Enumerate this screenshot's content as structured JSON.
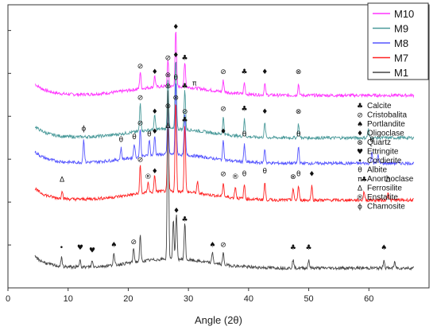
{
  "chart_data": {
    "type": "line",
    "xlabel": "Angle (2θ)",
    "ylabel": "",
    "xlim": [
      0,
      70
    ],
    "xticks": [
      0,
      10,
      20,
      30,
      40,
      50,
      60
    ],
    "grid": false,
    "legend_position": "top-right",
    "series": [
      {
        "name": "M10",
        "color": "#ff33ff",
        "baseline": 68,
        "peaks": [
          [
            22.0,
            6
          ],
          [
            24.4,
            4
          ],
          [
            26.6,
            9
          ],
          [
            27.9,
            20
          ],
          [
            29.4,
            9
          ],
          [
            35.8,
            4
          ],
          [
            39.3,
            4
          ],
          [
            42.7,
            4
          ],
          [
            48.3,
            4
          ]
        ]
      },
      {
        "name": "M9",
        "color": "#4a9a9a",
        "baseline": 53,
        "peaks": [
          [
            22.0,
            10
          ],
          [
            24.4,
            5
          ],
          [
            26.6,
            18
          ],
          [
            27.9,
            25
          ],
          [
            29.4,
            14
          ],
          [
            35.8,
            6
          ],
          [
            39.3,
            6
          ],
          [
            42.7,
            5
          ],
          [
            48.3,
            5
          ],
          [
            59.9,
            3
          ]
        ]
      },
      {
        "name": "M8",
        "color": "#5555ff",
        "baseline": 44,
        "peaks": [
          [
            12.6,
            8
          ],
          [
            18.8,
            4
          ],
          [
            21.0,
            5
          ],
          [
            22.0,
            10
          ],
          [
            23.5,
            6
          ],
          [
            24.4,
            7
          ],
          [
            26.6,
            16
          ],
          [
            27.9,
            26
          ],
          [
            29.4,
            14
          ],
          [
            35.8,
            7
          ],
          [
            39.3,
            6
          ],
          [
            42.7,
            5
          ],
          [
            48.3,
            6
          ],
          [
            60.5,
            4
          ],
          [
            61.5,
            3
          ]
        ]
      },
      {
        "name": "M7",
        "color": "#ff2222",
        "baseline": 31,
        "peaks": [
          [
            9.0,
            3
          ],
          [
            22.0,
            10
          ],
          [
            23.3,
            4
          ],
          [
            24.4,
            6
          ],
          [
            26.6,
            22
          ],
          [
            27.9,
            32
          ],
          [
            29.4,
            24
          ],
          [
            31.5,
            4
          ],
          [
            35.8,
            5
          ],
          [
            37.8,
            4
          ],
          [
            39.3,
            5
          ],
          [
            42.7,
            6
          ],
          [
            47.4,
            4
          ],
          [
            48.3,
            5
          ],
          [
            50.5,
            5
          ],
          [
            59.2,
            3
          ],
          [
            63.2,
            3
          ]
        ]
      },
      {
        "name": "M1",
        "color": "#444444",
        "baseline": 7,
        "peaks": [
          [
            8.9,
            3
          ],
          [
            12.0,
            3
          ],
          [
            14.0,
            2
          ],
          [
            17.6,
            4
          ],
          [
            20.9,
            5
          ],
          [
            22.0,
            9
          ],
          [
            26.6,
            60
          ],
          [
            27.5,
            14
          ],
          [
            28.0,
            16
          ],
          [
            29.4,
            13
          ],
          [
            34.0,
            4
          ],
          [
            35.8,
            4
          ],
          [
            47.4,
            3
          ],
          [
            50.0,
            3
          ],
          [
            62.5,
            3
          ],
          [
            64.3,
            2
          ]
        ]
      }
    ],
    "annotations": [
      {
        "series": "M10",
        "labels": [
          [
            22.0,
            "⊘"
          ],
          [
            24.4,
            "♦"
          ],
          [
            26.6,
            "⊘"
          ],
          [
            27.9,
            "♦"
          ],
          [
            29.4,
            "♣"
          ],
          [
            31.0,
            "π"
          ],
          [
            35.8,
            "⊘"
          ],
          [
            39.3,
            "♣"
          ],
          [
            42.7,
            "♦"
          ],
          [
            48.3,
            "⊗"
          ]
        ]
      },
      {
        "series": "M9",
        "labels": [
          [
            22.0,
            "⊘"
          ],
          [
            24.4,
            "♦"
          ],
          [
            26.6,
            "⊗"
          ],
          [
            27.9,
            "♦"
          ],
          [
            29.4,
            "♣"
          ],
          [
            35.8,
            "⊘"
          ],
          [
            39.3,
            "♣"
          ],
          [
            42.7,
            "♦"
          ],
          [
            48.3,
            "⊗"
          ]
        ]
      },
      {
        "series": "M8",
        "labels": [
          [
            12.6,
            "ϕ"
          ],
          [
            18.8,
            "θ"
          ],
          [
            21.0,
            "θ"
          ],
          [
            22.0,
            "⊘"
          ],
          [
            23.5,
            "θ"
          ],
          [
            24.4,
            "♦"
          ],
          [
            26.6,
            "⊗"
          ],
          [
            27.9,
            "θ"
          ],
          [
            29.4,
            "⊘"
          ],
          [
            35.8,
            "♦"
          ],
          [
            39.3,
            "θ"
          ],
          [
            48.3,
            "θ"
          ],
          [
            60.5,
            "θ"
          ]
        ]
      },
      {
        "series": "M7",
        "labels": [
          [
            9.0,
            "Δ"
          ],
          [
            22.0,
            "⊘"
          ],
          [
            23.3,
            "®"
          ],
          [
            24.4,
            "♦"
          ],
          [
            26.6,
            "Δ"
          ],
          [
            27.9,
            "⊗"
          ],
          [
            29.4,
            "♣"
          ],
          [
            35.8,
            "⊘"
          ],
          [
            37.8,
            "®"
          ],
          [
            39.3,
            "θ"
          ],
          [
            42.7,
            "θ"
          ],
          [
            47.4,
            "⊗"
          ],
          [
            48.3,
            "θ"
          ],
          [
            50.5,
            "♦"
          ],
          [
            59.2,
            "♣"
          ],
          [
            63.2,
            "Δ"
          ]
        ]
      },
      {
        "series": "M1",
        "labels": [
          [
            8.9,
            "•"
          ],
          [
            12.0,
            "♥"
          ],
          [
            14.0,
            "♥"
          ],
          [
            17.6,
            "♠"
          ],
          [
            20.9,
            "⊘"
          ],
          [
            26.6,
            "⊗"
          ],
          [
            28.0,
            "♦"
          ],
          [
            29.4,
            "♣"
          ],
          [
            34.0,
            "♠"
          ],
          [
            35.8,
            "⊘"
          ],
          [
            47.4,
            "♣"
          ],
          [
            50.0,
            "♣"
          ],
          [
            62.5,
            "♠"
          ]
        ]
      }
    ],
    "phase_legend": [
      {
        "symbol": "♣",
        "name": "Calcite"
      },
      {
        "symbol": "⊘",
        "name": "Cristobalita"
      },
      {
        "symbol": "♠",
        "name": "Portlandite"
      },
      {
        "symbol": "♦",
        "name": "Oligoclase"
      },
      {
        "symbol": "⊗",
        "name": "Quartz"
      },
      {
        "symbol": "♥",
        "name": "Ettringite"
      },
      {
        "symbol": "•",
        "name": "Cordierite"
      },
      {
        "symbol": "θ",
        "name": "Albite"
      },
      {
        "symbol": "π",
        "name": "Anorthoclase"
      },
      {
        "symbol": "Δ",
        "name": "Ferrosilite"
      },
      {
        "symbol": "®",
        "name": "Enstatite"
      },
      {
        "symbol": "ϕ",
        "name": "Chamosite"
      }
    ]
  }
}
